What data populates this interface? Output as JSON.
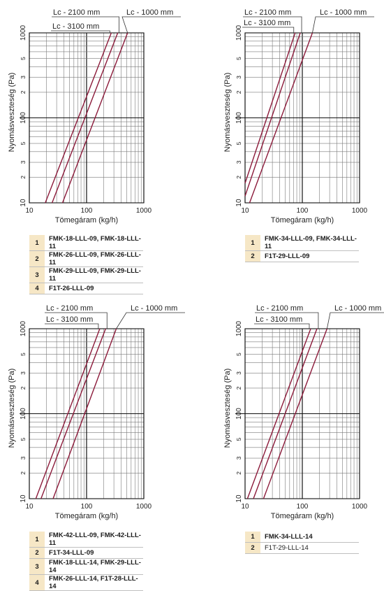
{
  "chart_data": [
    {
      "type": "line",
      "xlabel": "Tömegáram (kg/h)",
      "ylabel": "Nyomásveszteség (Pa)",
      "x_scale": "log",
      "y_scale": "log",
      "xlim": [
        10,
        1000
      ],
      "ylim": [
        10,
        1000
      ],
      "x_ticks": [
        "10",
        "100",
        "1000"
      ],
      "y_ticks": [
        "10",
        "100",
        "1000"
      ],
      "y_minor_ticks": [
        "2",
        "3",
        "5"
      ],
      "grid": true,
      "line_color": "#8b1a3a",
      "series": [
        {
          "name": "Lc - 3100 mm",
          "x": [
            19,
            270
          ],
          "y": [
            10,
            1000
          ]
        },
        {
          "name": "Lc - 2100 mm",
          "x": [
            25,
            350
          ],
          "y": [
            10,
            1000
          ]
        },
        {
          "name": "Lc - 1000 mm",
          "x": [
            38,
            520
          ],
          "y": [
            10,
            1000
          ]
        }
      ],
      "legend": [
        {
          "num": "1",
          "label": "FMK-18-LLL-09, FMK-18-LLL-11"
        },
        {
          "num": "2",
          "label": "FMK-26-LLL-09, FMK-26-LLL-11"
        },
        {
          "num": "3",
          "label": "FMK-29-LLL-09, FMK-29-LLL-11"
        },
        {
          "num": "4",
          "label": "F1T-26-LLL-09"
        }
      ]
    },
    {
      "type": "line",
      "xlabel": "Tömegáram (kg/h)",
      "ylabel": "Nyomásveszteség (Pa)",
      "x_scale": "log",
      "y_scale": "log",
      "xlim": [
        10,
        1000
      ],
      "ylim": [
        10,
        1000
      ],
      "x_ticks": [
        "10",
        "100",
        "1000"
      ],
      "y_ticks": [
        "10",
        "100",
        "1000"
      ],
      "y_minor_ticks": [
        "2",
        "3",
        "5"
      ],
      "grid": true,
      "line_color": "#8b1a3a",
      "series": [
        {
          "name": "Lc - 3100 mm",
          "x": [
            10,
            75
          ],
          "y": [
            17,
            1000
          ]
        },
        {
          "name": "Lc - 2100 mm",
          "x": [
            10,
            92
          ],
          "y": [
            12,
            1000
          ]
        },
        {
          "name": "Lc - 1000 mm",
          "x": [
            12,
            150
          ],
          "y": [
            10,
            1000
          ]
        }
      ],
      "legend": [
        {
          "num": "1",
          "label": "FMK-34-LLL-09, FMK-34-LLL-11"
        },
        {
          "num": "2",
          "label": "F1T-29-LLL-09"
        }
      ]
    },
    {
      "type": "line",
      "xlabel": "Tömegáram (kg/h)",
      "ylabel": "Nyomásveszteség (Pa)",
      "x_scale": "log",
      "y_scale": "log",
      "xlim": [
        10,
        1000
      ],
      "ylim": [
        10,
        1000
      ],
      "x_ticks": [
        "10",
        "100",
        "1000"
      ],
      "y_ticks": [
        "10",
        "100",
        "1000"
      ],
      "y_minor_ticks": [
        "2",
        "3",
        "5"
      ],
      "grid": true,
      "line_color": "#8b1a3a",
      "series": [
        {
          "name": "Lc - 3100 mm",
          "x": [
            13,
            170
          ],
          "y": [
            10,
            1000
          ]
        },
        {
          "name": "Lc - 2100 mm",
          "x": [
            16,
            215
          ],
          "y": [
            10,
            1000
          ]
        },
        {
          "name": "Lc - 1000 mm",
          "x": [
            26,
            330
          ],
          "y": [
            10,
            1000
          ]
        }
      ],
      "legend": [
        {
          "num": "1",
          "label": "FMK-42-LLL-09, FMK-42-LLL-11"
        },
        {
          "num": "2",
          "label": "F1T-34-LLL-09"
        },
        {
          "num": "3",
          "label": "FMK-18-LLL-14, FMK-29-LLL-14"
        },
        {
          "num": "4",
          "label": "FMK-26-LLL-14, F1T-28-LLL-14"
        }
      ]
    },
    {
      "type": "line",
      "xlabel": "Tömegáram (kg/h)",
      "ylabel": "Nyomásveszteség (Pa)",
      "x_scale": "log",
      "y_scale": "log",
      "xlim": [
        10,
        1000
      ],
      "ylim": [
        10,
        1000
      ],
      "x_ticks": [
        "10",
        "100",
        "1000"
      ],
      "y_ticks": [
        "10",
        "100",
        "1000"
      ],
      "y_minor_ticks": [
        "2",
        "3",
        "5"
      ],
      "grid": true,
      "line_color": "#8b1a3a",
      "series": [
        {
          "name": "Lc - 3100 mm",
          "x": [
            11,
            140
          ],
          "y": [
            10,
            1000
          ]
        },
        {
          "name": "Lc - 2100 mm",
          "x": [
            14,
            180
          ],
          "y": [
            10,
            1000
          ]
        },
        {
          "name": "Lc - 1000 mm",
          "x": [
            21,
            270
          ],
          "y": [
            10,
            1000
          ]
        }
      ],
      "legend": [
        {
          "num": "1",
          "label": "FMK-34-LLL-14"
        },
        {
          "num": "2",
          "label": "F1T-29-LLL-14",
          "plain": true
        }
      ]
    }
  ]
}
